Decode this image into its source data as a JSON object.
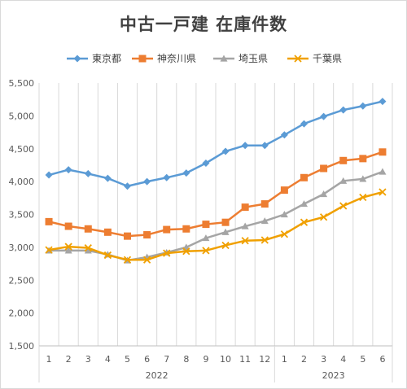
{
  "chart_data": {
    "type": "line",
    "title": "中古一戸建 在庫件数",
    "xlabel": "",
    "ylabel": "",
    "ylim": [
      1500,
      5500
    ],
    "ytick_step": 500,
    "y_tick_labels": [
      "1,500",
      "2,000",
      "2,500",
      "3,000",
      "3,500",
      "4,000",
      "4,500",
      "5,000",
      "5,500"
    ],
    "categories": [
      "1",
      "2",
      "3",
      "4",
      "5",
      "6",
      "7",
      "8",
      "9",
      "10",
      "11",
      "12",
      "1",
      "2",
      "3",
      "4",
      "5",
      "6"
    ],
    "year_groups": [
      {
        "label": "2022",
        "count": 12
      },
      {
        "label": "2023",
        "count": 6
      }
    ],
    "grid": "vertical",
    "legend_position": "top",
    "series": [
      {
        "name": "東京都",
        "color": "#5b9bd5",
        "marker": "diamond",
        "values": [
          4100,
          4180,
          4120,
          4050,
          3930,
          4000,
          4060,
          4130,
          4280,
          4460,
          4550,
          4550,
          4710,
          4880,
          4990,
          5090,
          5150,
          5220
        ]
      },
      {
        "name": "神奈川県",
        "color": "#ed7d31",
        "marker": "square",
        "values": [
          3390,
          3320,
          3280,
          3230,
          3170,
          3190,
          3270,
          3280,
          3350,
          3380,
          3610,
          3660,
          3870,
          4060,
          4200,
          4320,
          4350,
          4450
        ]
      },
      {
        "name": "埼玉県",
        "color": "#a5a5a5",
        "marker": "triangle",
        "values": [
          2950,
          2950,
          2950,
          2890,
          2800,
          2850,
          2920,
          3000,
          3140,
          3230,
          3320,
          3400,
          3500,
          3660,
          3810,
          4010,
          4040,
          4150
        ]
      },
      {
        "name": "千葉県",
        "color": "#f0a000",
        "marker": "x",
        "values": [
          2960,
          3010,
          2990,
          2880,
          2810,
          2810,
          2910,
          2940,
          2950,
          3030,
          3100,
          3110,
          3200,
          3380,
          3460,
          3630,
          3760,
          3840
        ]
      }
    ]
  }
}
